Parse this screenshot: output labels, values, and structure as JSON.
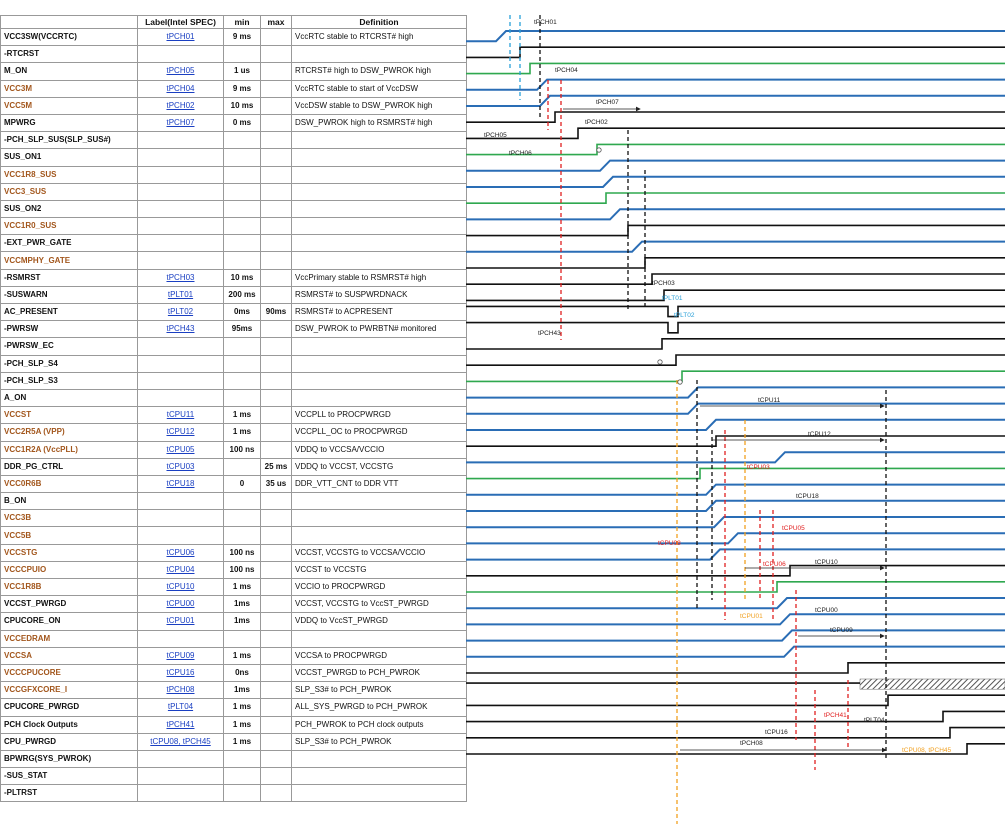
{
  "headers": {
    "label": "Label(Intel SPEC)",
    "min": "min",
    "max": "max",
    "definition": "Definition"
  },
  "rows": [
    {
      "signal": "VCC3SW(VCCRTC)",
      "label": "tPCH01",
      "min": "9 ms",
      "max": "",
      "def": "VccRTC stable to RTCRST# high",
      "power": false
    },
    {
      "signal": "-RTCRST",
      "label": "",
      "min": "",
      "max": "",
      "def": "",
      "power": false
    },
    {
      "signal": "M_ON",
      "label": "tPCH05",
      "min": "1 us",
      "max": "",
      "def": "RTCRST# high to DSW_PWROK high",
      "power": false
    },
    {
      "signal": "VCC3M",
      "label": "tPCH04",
      "min": "9 ms",
      "max": "",
      "def": "VccRTC stable to start of VccDSW",
      "power": true
    },
    {
      "signal": "VCC5M",
      "label": "tPCH02",
      "min": "10 ms",
      "max": "",
      "def": "VccDSW stable to DSW_PWROK high",
      "power": true
    },
    {
      "signal": "MPWRG",
      "label": "tPCH07",
      "min": "0 ms",
      "max": "",
      "def": "DSW_PWROK high to RSMRST# high",
      "power": false
    },
    {
      "signal": "-PCH_SLP_SUS(SLP_SUS#)",
      "label": "",
      "min": "",
      "max": "",
      "def": "",
      "power": false
    },
    {
      "signal": "SUS_ON1",
      "label": "",
      "min": "",
      "max": "",
      "def": "",
      "power": false
    },
    {
      "signal": "VCC1R8_SUS",
      "label": "",
      "min": "",
      "max": "",
      "def": "",
      "power": true
    },
    {
      "signal": "VCC3_SUS",
      "label": "",
      "min": "",
      "max": "",
      "def": "",
      "power": true
    },
    {
      "signal": "SUS_ON2",
      "label": "",
      "min": "",
      "max": "",
      "def": "",
      "power": false
    },
    {
      "signal": "VCC1R0_SUS",
      "label": "",
      "min": "",
      "max": "",
      "def": "",
      "power": true
    },
    {
      "signal": "-EXT_PWR_GATE",
      "label": "",
      "min": "",
      "max": "",
      "def": "",
      "power": false
    },
    {
      "signal": "VCCMPHY_GATE",
      "label": "",
      "min": "",
      "max": "",
      "def": "",
      "power": true
    },
    {
      "signal": "-RSMRST",
      "label": "tPCH03",
      "min": "10 ms",
      "max": "",
      "def": "VccPrimary stable to RSMRST# high",
      "power": false
    },
    {
      "signal": "-SUSWARN",
      "label": "tPLT01",
      "min": "200 ms",
      "max": "",
      "def": "RSMRST# to SUSPWRDNACK",
      "power": false
    },
    {
      "signal": "AC_PRESENT",
      "label": "tPLT02",
      "min": "0ms",
      "max": "90ms",
      "def": "RSMRST# to ACPRESENT",
      "power": false
    },
    {
      "signal": "-PWRSW",
      "label": "tPCH43",
      "min": "95ms",
      "max": "",
      "def": "DSW_PWROK to PWRBTN# monitored",
      "power": false
    },
    {
      "signal": "-PWRSW_EC",
      "label": "",
      "min": "",
      "max": "",
      "def": "",
      "power": false
    },
    {
      "signal": "-PCH_SLP_S4",
      "label": "",
      "min": "",
      "max": "",
      "def": "",
      "power": false
    },
    {
      "signal": "-PCH_SLP_S3",
      "label": "",
      "min": "",
      "max": "",
      "def": "",
      "power": false
    },
    {
      "signal": "A_ON",
      "label": "",
      "min": "",
      "max": "",
      "def": "",
      "power": false
    },
    {
      "signal": "VCCST",
      "label": "tCPU11",
      "min": "1 ms",
      "max": "",
      "def": "VCCPLL to PROCPWRGD",
      "power": true
    },
    {
      "signal": "VCC2R5A (VPP)",
      "label": "tCPU12",
      "min": "1 ms",
      "max": "",
      "def": "VCCPLL_OC to PROCPWRGD",
      "power": true
    },
    {
      "signal": "VCC1R2A (VccPLL)",
      "label": "tCPU05",
      "min": "100 ns",
      "max": "",
      "def": "VDDQ to VCCSA/VCCIO",
      "power": true
    },
    {
      "signal": "DDR_PG_CTRL",
      "label": "tCPU03",
      "min": "",
      "max": "25 ms",
      "def": "VDDQ to VCCST, VCCSTG",
      "power": false
    },
    {
      "signal": "VCC0R6B",
      "label": "tCPU18",
      "min": "0",
      "max": "35 us",
      "def": "DDR_VTT_CNT to DDR VTT",
      "power": true
    },
    {
      "signal": "B_ON",
      "label": "",
      "min": "",
      "max": "",
      "def": "",
      "power": false
    },
    {
      "signal": "VCC3B",
      "label": "",
      "min": "",
      "max": "",
      "def": "",
      "power": true
    },
    {
      "signal": "VCC5B",
      "label": "",
      "min": "",
      "max": "",
      "def": "",
      "power": true
    },
    {
      "signal": "VCCSTG",
      "label": "tCPU06",
      "min": "100 ns",
      "max": "",
      "def": "VCCST, VCCSTG to VCCSA/VCCIO",
      "power": true
    },
    {
      "signal": "VCCCPUIO",
      "label": "tCPU04",
      "min": "100 ns",
      "max": "",
      "def": "VCCST to VCCSTG",
      "power": true
    },
    {
      "signal": "VCC1R8B",
      "label": "tCPU10",
      "min": "1 ms",
      "max": "",
      "def": "VCCIO to PROCPWRGD",
      "power": true
    },
    {
      "signal": "VCCST_PWRGD",
      "label": "tCPU00",
      "min": "1ms",
      "max": "",
      "def": "VCCST, VCCSTG to VccST_PWRGD",
      "power": false
    },
    {
      "signal": "CPUCORE_ON",
      "label": "tCPU01",
      "min": "1ms",
      "max": "",
      "def": "VDDQ to VccST_PWRGD",
      "power": false
    },
    {
      "signal": "VCCEDRAM",
      "label": "",
      "min": "",
      "max": "",
      "def": "",
      "power": true
    },
    {
      "signal": "VCCSA",
      "label": "tCPU09",
      "min": "1 ms",
      "max": "",
      "def": "VCCSA to PROCPWRGD",
      "power": true
    },
    {
      "signal": "VCCCPUCORE",
      "label": "tCPU16",
      "min": "0ns",
      "max": "",
      "def": "VCCST_PWRGD to PCH_PWROK",
      "power": true
    },
    {
      "signal": "VCCGFXCORE_I",
      "label": "tPCH08",
      "min": "1ms",
      "max": "",
      "def": "SLP_S3# to PCH_PWROK",
      "power": true
    },
    {
      "signal": "CPUCORE_PWRGD",
      "label": "tPLT04",
      "min": "1 ms",
      "max": "",
      "def": "ALL_SYS_PWRGD to PCH_PWROK",
      "power": false
    },
    {
      "signal": "PCH Clock Outputs",
      "label": "tPCH41",
      "min": "1 ms",
      "max": "",
      "def": "PCH_PWROK to PCH clock outputs",
      "power": false
    },
    {
      "signal": "CPU_PWRGD",
      "label": "tCPU08, tPCH45",
      "min": "1 ms",
      "max": "",
      "def": "SLP_S3# to PCH_PWROK",
      "power": false
    },
    {
      "signal": "BPWRG(SYS_PWROK)",
      "label": "",
      "min": "",
      "max": "",
      "def": "",
      "power": false
    },
    {
      "signal": "-SUS_STAT",
      "label": "",
      "min": "",
      "max": "",
      "def": "",
      "power": false
    },
    {
      "signal": "-PLTRST",
      "label": "",
      "min": "",
      "max": "",
      "def": "",
      "power": false
    }
  ],
  "annotations": [
    "tPCH01",
    "tPCH04",
    "tPCH07",
    "tPCH02",
    "tPCH05",
    "tPCH06",
    "tPCH03",
    "tPLT01",
    "tPLT02",
    "tPCH43",
    "tCPU11",
    "tCPU12",
    "tCPU03",
    "tCPU18",
    "tCPU05",
    "tCPU08",
    "tCPU06",
    "tCPU10",
    "tCPU01",
    "tCPU00",
    "tCPU09",
    "tPCH41",
    "tPLT04",
    "tCPU16",
    "tPCH08",
    "tCPU08, tPCH45"
  ],
  "colors": {
    "green": "#2fa84f",
    "blue": "#2a6db5",
    "black": "#111111",
    "red": "#e02020",
    "orange": "#f0a020",
    "cyan": "#2aa0d8",
    "power_text": "#a2561c",
    "link": "#1a3fc2"
  }
}
